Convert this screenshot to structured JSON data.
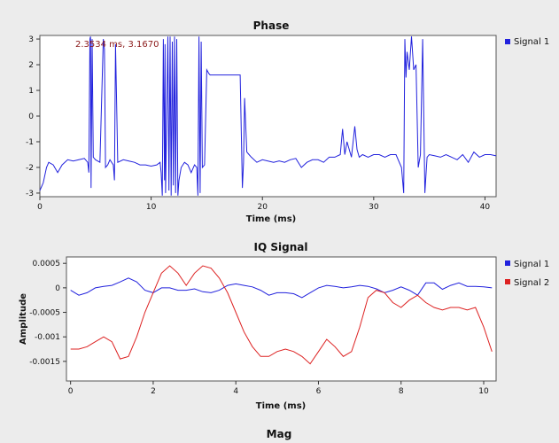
{
  "window": {
    "bottom_title": "Mag"
  },
  "chart_data": [
    {
      "type": "line",
      "title": "Phase",
      "xlabel": "Time (ms)",
      "ylabel": "",
      "xlim": [
        0,
        41
      ],
      "ylim": [
        -3.14,
        3.14
      ],
      "x_ticks": [
        0,
        10,
        20,
        30,
        40
      ],
      "y_ticks": [
        3,
        2,
        1,
        0,
        -1,
        -2,
        -3
      ],
      "legend_position": "right",
      "grid": false,
      "marker_text": "2.3534 ms, 3.1670",
      "marker_color": "#8b1a1a",
      "series": [
        {
          "name": "Signal 1",
          "color": "#2222dd",
          "x": [
            0,
            0.3,
            0.6,
            0.8,
            1.2,
            1.6,
            2.0,
            2.5,
            3.0,
            3.5,
            4.0,
            4.3,
            4.4,
            4.5,
            4.55,
            4.6,
            4.7,
            4.8,
            5.0,
            5.4,
            5.7,
            5.8,
            5.9,
            6.1,
            6.3,
            6.6,
            6.7,
            6.8,
            7.0,
            7.5,
            8.0,
            8.5,
            9.0,
            9.5,
            10.0,
            10.5,
            10.8,
            10.9,
            11.0,
            11.1,
            11.2,
            11.25,
            11.3,
            11.5,
            11.6,
            11.7,
            11.8,
            11.9,
            12.0,
            12.1,
            12.2,
            12.3,
            12.4,
            12.5,
            12.7,
            13.0,
            13.3,
            13.6,
            13.9,
            14.1,
            14.2,
            14.3,
            14.4,
            14.5,
            14.6,
            14.8,
            15.0,
            15.2,
            15.3,
            15.4,
            16.0,
            17.0,
            18.0,
            18.2,
            18.3,
            18.4,
            18.6,
            18.8,
            19.0,
            19.5,
            20.0,
            20.5,
            21.0,
            21.5,
            22.0,
            22.5,
            23.0,
            23.5,
            24.0,
            24.5,
            25.0,
            25.5,
            26.0,
            26.5,
            27.0,
            27.2,
            27.4,
            27.6,
            28.0,
            28.3,
            28.5,
            28.7,
            29.0,
            29.5,
            30.0,
            30.5,
            31.0,
            31.5,
            32.0,
            32.5,
            32.7,
            32.8,
            32.9,
            33.0,
            33.2,
            33.4,
            33.6,
            33.8,
            34.0,
            34.2,
            34.4,
            34.6,
            34.8,
            35.0,
            35.5,
            36.0,
            36.5,
            37.0,
            37.5,
            38.0,
            38.5,
            39.0,
            39.5,
            40.0,
            40.5,
            41.0
          ],
          "y": [
            -2.9,
            -2.6,
            -2.0,
            -1.8,
            -1.9,
            -2.2,
            -1.9,
            -1.7,
            -1.75,
            -1.7,
            -1.65,
            -1.8,
            -2.2,
            3.0,
            3.1,
            -2.8,
            3.0,
            -1.6,
            -1.7,
            -1.8,
            3.0,
            2.6,
            -2.0,
            -1.9,
            -1.7,
            -1.9,
            -2.5,
            2.8,
            -1.8,
            -1.7,
            -1.75,
            -1.8,
            -1.9,
            -1.9,
            -1.95,
            -1.9,
            -1.8,
            -2.2,
            -3.1,
            3.0,
            -2.5,
            2.8,
            -3.0,
            3.1,
            -2.9,
            3.1,
            -3.1,
            2.9,
            -2.7,
            3.1,
            -3.0,
            3.0,
            -3.1,
            -2.5,
            -2.0,
            -1.8,
            -1.9,
            -2.2,
            -1.9,
            -2.0,
            -3.1,
            3.1,
            -3.0,
            2.9,
            -2.0,
            -1.9,
            1.8,
            1.65,
            1.6,
            1.6,
            1.6,
            1.6,
            1.6,
            -2.8,
            -1.8,
            0.7,
            -1.4,
            -1.5,
            -1.6,
            -1.8,
            -1.7,
            -1.75,
            -1.8,
            -1.75,
            -1.8,
            -1.7,
            -1.65,
            -2.0,
            -1.8,
            -1.7,
            -1.7,
            -1.8,
            -1.6,
            -1.6,
            -1.5,
            -0.5,
            -1.5,
            -1.0,
            -1.6,
            -0.4,
            -1.3,
            -1.6,
            -1.5,
            -1.6,
            -1.5,
            -1.5,
            -1.6,
            -1.5,
            -1.5,
            -2.0,
            -3.0,
            3.0,
            1.5,
            2.5,
            1.8,
            3.1,
            1.8,
            2.0,
            -2.0,
            -1.5,
            3.0,
            -3.0,
            -1.6,
            -1.5,
            -1.55,
            -1.6,
            -1.5,
            -1.6,
            -1.7,
            -1.5,
            -1.8,
            -1.4,
            -1.6,
            -1.5,
            -1.5,
            -1.55
          ]
        }
      ]
    },
    {
      "type": "line",
      "title": "IQ Signal",
      "xlabel": "Time (ms)",
      "ylabel": "Amplitude",
      "xlim": [
        -0.1,
        10.3
      ],
      "ylim": [
        -0.0019,
        0.00063
      ],
      "x_ticks": [
        0,
        2,
        4,
        6,
        8,
        10
      ],
      "y_ticks": [
        0.0005,
        0,
        -0.0005,
        -0.001,
        -0.0015
      ],
      "y_tick_labels": [
        "0.0005",
        "0",
        "-0.0005",
        "-0.001",
        "-0.0015"
      ],
      "legend_position": "right",
      "grid": false,
      "series": [
        {
          "name": "Signal 1",
          "color": "#2222dd",
          "x": [
            0,
            0.2,
            0.4,
            0.6,
            0.8,
            1.0,
            1.2,
            1.4,
            1.6,
            1.8,
            2.0,
            2.2,
            2.4,
            2.6,
            2.8,
            3.0,
            3.2,
            3.4,
            3.6,
            3.8,
            4.0,
            4.2,
            4.4,
            4.6,
            4.8,
            5.0,
            5.2,
            5.4,
            5.6,
            5.8,
            6.0,
            6.2,
            6.4,
            6.6,
            6.8,
            7.0,
            7.2,
            7.4,
            7.6,
            7.8,
            8.0,
            8.2,
            8.4,
            8.6,
            8.8,
            9.0,
            9.2,
            9.4,
            9.6,
            9.8,
            10.0,
            10.2
          ],
          "y": [
            -5e-05,
            -0.00015,
            -0.0001,
            0,
            3e-05,
            5e-05,
            0.00012,
            0.0002,
            0.00012,
            -5e-05,
            -0.0001,
            0,
            0,
            -5e-05,
            -5e-05,
            -2e-05,
            -8e-05,
            -0.0001,
            -5e-05,
            5e-05,
            8e-05,
            5e-05,
            2e-05,
            -5e-05,
            -0.00015,
            -0.0001,
            -0.0001,
            -0.00012,
            -0.0002,
            -0.0001,
            0,
            5e-05,
            3e-05,
            0,
            2e-05,
            5e-05,
            3e-05,
            -2e-05,
            -0.0001,
            -5e-05,
            2e-05,
            -5e-05,
            -0.00015,
            0.0001,
            0.0001,
            -3e-05,
            5e-05,
            0.0001,
            3e-05,
            3e-05,
            2e-05,
            0
          ]
        },
        {
          "name": "Signal 2",
          "color": "#dd2222",
          "x": [
            0,
            0.2,
            0.4,
            0.6,
            0.8,
            1.0,
            1.2,
            1.4,
            1.6,
            1.8,
            2.0,
            2.2,
            2.4,
            2.6,
            2.8,
            3.0,
            3.2,
            3.4,
            3.6,
            3.8,
            4.0,
            4.2,
            4.4,
            4.6,
            4.8,
            5.0,
            5.2,
            5.4,
            5.6,
            5.8,
            6.0,
            6.2,
            6.4,
            6.6,
            6.8,
            7.0,
            7.2,
            7.4,
            7.6,
            7.8,
            8.0,
            8.2,
            8.4,
            8.6,
            8.8,
            9.0,
            9.2,
            9.4,
            9.6,
            9.8,
            10.0,
            10.2
          ],
          "y": [
            -0.00125,
            -0.00125,
            -0.0012,
            -0.0011,
            -0.001,
            -0.0011,
            -0.00145,
            -0.0014,
            -0.001,
            -0.0005,
            -0.0001,
            0.0003,
            0.00045,
            0.0003,
            5e-05,
            0.0003,
            0.00045,
            0.0004,
            0.0002,
            -0.0001,
            -0.0005,
            -0.0009,
            -0.0012,
            -0.0014,
            -0.0014,
            -0.0013,
            -0.00125,
            -0.0013,
            -0.0014,
            -0.00155,
            -0.0013,
            -0.00105,
            -0.0012,
            -0.0014,
            -0.0013,
            -0.0008,
            -0.0002,
            -5e-05,
            -0.0001,
            -0.0003,
            -0.0004,
            -0.00025,
            -0.00015,
            -0.0003,
            -0.0004,
            -0.00045,
            -0.0004,
            -0.0004,
            -0.00045,
            -0.0004,
            -0.0008,
            -0.0013
          ]
        }
      ]
    }
  ]
}
